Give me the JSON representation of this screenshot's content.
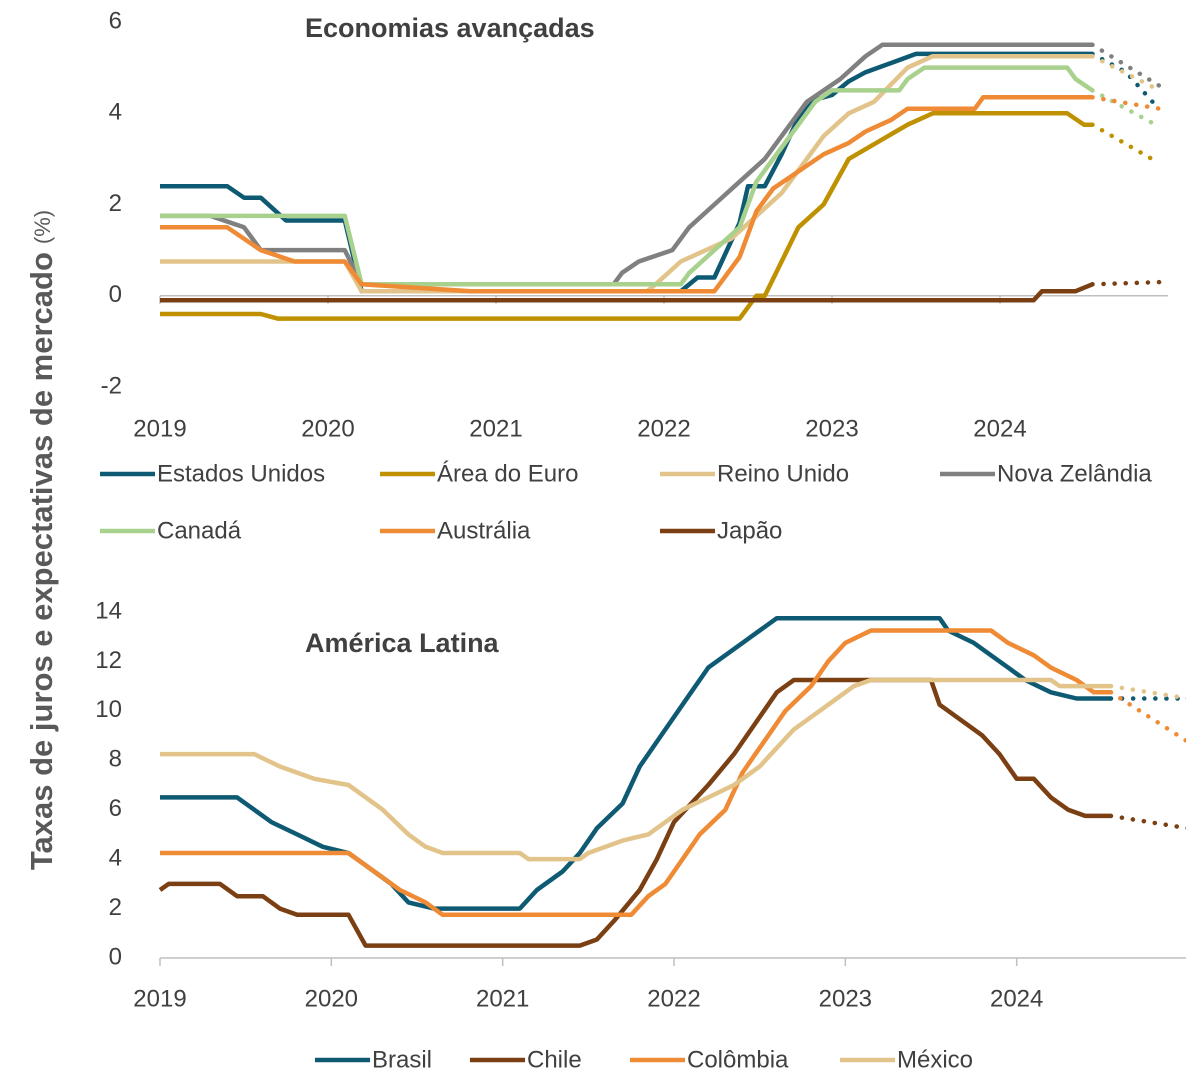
{
  "y_label": "Taxas de juros e expectativas de mercado",
  "y_unit": "(%)",
  "chart_data": [
    {
      "type": "line",
      "title": "Economias avançadas",
      "xlim": [
        2019,
        2025
      ],
      "ylim": [
        -2,
        6
      ],
      "xticks": [
        2019,
        2020,
        2021,
        2022,
        2023,
        2024
      ],
      "yticks": [
        -2,
        0,
        2,
        4,
        6
      ],
      "series": [
        {
          "name": "Estados Unidos",
          "color": "#0e5a73",
          "x": [
            2019,
            2019.4,
            2019.5,
            2019.6,
            2019.75,
            2020.1,
            2020.2,
            2022.1,
            2022.2,
            2022.3,
            2022.45,
            2022.5,
            2022.6,
            2022.7,
            2022.8,
            2022.9,
            2023.0,
            2023.1,
            2023.2,
            2023.35,
            2023.5,
            2024.55
          ],
          "values": [
            2.4,
            2.4,
            2.15,
            2.15,
            1.65,
            1.65,
            0.1,
            0.1,
            0.4,
            0.4,
            1.6,
            2.4,
            2.4,
            3.1,
            3.9,
            4.3,
            4.4,
            4.7,
            4.9,
            5.1,
            5.3,
            5.3
          ],
          "forecast": {
            "x": [
              2024.55,
              2024.75,
              2024.92
            ],
            "values": [
              5.3,
              4.9,
              4.2
            ]
          }
        },
        {
          "name": "Área do Euro",
          "color": "#bf9000",
          "x": [
            2019,
            2019.6,
            2019.7,
            2022.45,
            2022.55,
            2022.6,
            2022.8,
            2022.95,
            2023.1,
            2023.45,
            2023.6,
            2024.4,
            2024.5,
            2024.55
          ],
          "values": [
            -0.4,
            -0.4,
            -0.5,
            -0.5,
            0,
            0,
            1.5,
            2,
            3,
            3.75,
            4,
            4,
            3.75,
            3.75
          ],
          "forecast": {
            "x": [
              2024.55,
              2024.95
            ],
            "values": [
              3.75,
              2.9
            ]
          }
        },
        {
          "name": "Reino Unido",
          "color": "#e2c48a",
          "x": [
            2019,
            2020.1,
            2020.2,
            2021.9,
            2021.95,
            2022.1,
            2022.4,
            2022.55,
            2022.7,
            2022.85,
            2022.95,
            2023.1,
            2023.25,
            2023.45,
            2023.6,
            2024.55
          ],
          "values": [
            0.75,
            0.75,
            0.1,
            0.1,
            0.25,
            0.75,
            1.25,
            1.75,
            2.25,
            3,
            3.5,
            4,
            4.25,
            5,
            5.25,
            5.25
          ],
          "forecast": {
            "x": [
              2024.55,
              2024.95
            ],
            "values": [
              5.25,
              4.5
            ]
          }
        },
        {
          "name": "Nova Zelândia",
          "color": "#808080",
          "x": [
            2019,
            2019.3,
            2019.5,
            2019.6,
            2020.1,
            2020.2,
            2021.7,
            2021.75,
            2021.85,
            2022.05,
            2022.15,
            2022.3,
            2022.45,
            2022.6,
            2022.7,
            2022.85,
            2023.05,
            2023.2,
            2023.3,
            2024.55
          ],
          "values": [
            1.75,
            1.75,
            1.5,
            1,
            1,
            0.25,
            0.25,
            0.5,
            0.75,
            1,
            1.5,
            2,
            2.5,
            3,
            3.5,
            4.25,
            4.75,
            5.25,
            5.5,
            5.5
          ],
          "forecast": {
            "x": [
              2024.55,
              2024.95
            ],
            "values": [
              5.5,
              4.6
            ]
          }
        },
        {
          "name": "Canadá",
          "color": "#a9d18e",
          "x": [
            2019,
            2020.1,
            2020.2,
            2022.1,
            2022.15,
            2022.3,
            2022.45,
            2022.55,
            2022.7,
            2022.8,
            2022.9,
            2023.0,
            2023.4,
            2023.45,
            2023.55,
            2024.4,
            2024.45,
            2024.55
          ],
          "values": [
            1.75,
            1.75,
            0.25,
            0.25,
            0.5,
            1,
            1.5,
            2.5,
            3.25,
            3.75,
            4.25,
            4.5,
            4.5,
            4.75,
            5,
            5,
            4.75,
            4.5
          ],
          "forecast": {
            "x": [
              2024.55,
              2024.95
            ],
            "values": [
              4.5,
              3.7
            ]
          }
        },
        {
          "name": "Austrália",
          "color": "#ef8a35",
          "x": [
            2019,
            2019.4,
            2019.6,
            2019.8,
            2020.1,
            2020.2,
            2020.85,
            2022.3,
            2022.35,
            2022.45,
            2022.5,
            2022.55,
            2022.65,
            2022.75,
            2022.85,
            2022.95,
            2023.1,
            2023.2,
            2023.35,
            2023.45,
            2023.85,
            2023.9,
            2024.55
          ],
          "values": [
            1.5,
            1.5,
            1,
            0.75,
            0.75,
            0.25,
            0.1,
            0.1,
            0.35,
            0.85,
            1.35,
            1.85,
            2.35,
            2.6,
            2.85,
            3.1,
            3.35,
            3.6,
            3.85,
            4.1,
            4.1,
            4.35,
            4.35
          ],
          "forecast": {
            "x": [
              2024.55,
              2024.95
            ],
            "values": [
              4.35,
              4.1
            ]
          }
        },
        {
          "name": "Japão",
          "color": "#7b3f14",
          "x": [
            2019,
            2024.2,
            2024.25,
            2024.45,
            2024.55
          ],
          "values": [
            -0.1,
            -0.1,
            0.1,
            0.1,
            0.25
          ],
          "forecast": {
            "x": [
              2024.55,
              2024.95
            ],
            "values": [
              0.25,
              0.3
            ]
          }
        }
      ]
    },
    {
      "type": "line",
      "title": "América Latina",
      "xlim": [
        2019,
        2025
      ],
      "ylim": [
        0,
        14
      ],
      "xticks": [
        2019,
        2020,
        2021,
        2022,
        2023,
        2024
      ],
      "yticks": [
        0,
        2,
        4,
        6,
        8,
        10,
        12,
        14
      ],
      "series": [
        {
          "name": "Brasil",
          "color": "#0e5a73",
          "x": [
            2019,
            2019.45,
            2019.55,
            2019.65,
            2019.8,
            2019.95,
            2020.1,
            2020.2,
            2020.35,
            2020.45,
            2020.6,
            2021.1,
            2021.2,
            2021.35,
            2021.45,
            2021.55,
            2021.7,
            2021.8,
            2021.95,
            2022.1,
            2022.2,
            2022.4,
            2022.5,
            2022.6,
            2023.55,
            2023.6,
            2023.75,
            2023.85,
            2023.95,
            2024.05,
            2024.2,
            2024.35,
            2024.55
          ],
          "values": [
            6.5,
            6.5,
            6,
            5.5,
            5,
            4.5,
            4.25,
            3.75,
            3,
            2.25,
            2,
            2,
            2.75,
            3.5,
            4.25,
            5.25,
            6.25,
            7.75,
            9.25,
            10.75,
            11.75,
            12.75,
            13.25,
            13.75,
            13.75,
            13.25,
            12.75,
            12.25,
            11.75,
            11.25,
            10.75,
            10.5,
            10.5
          ],
          "forecast": {
            "x": [
              2024.55,
              2025
            ],
            "values": [
              10.5,
              10.5
            ]
          }
        },
        {
          "name": "Chile",
          "color": "#7b3f14",
          "x": [
            2019,
            2019.05,
            2019.35,
            2019.45,
            2019.6,
            2019.7,
            2019.8,
            2020.1,
            2020.2,
            2021.45,
            2021.55,
            2021.65,
            2021.8,
            2021.9,
            2022.0,
            2022.2,
            2022.35,
            2022.5,
            2022.6,
            2022.7,
            2023.5,
            2023.55,
            2023.7,
            2023.8,
            2023.9,
            2024.0,
            2024.1,
            2024.2,
            2024.3,
            2024.4,
            2024.55
          ],
          "values": [
            2.75,
            3,
            3,
            2.5,
            2.5,
            2,
            1.75,
            1.75,
            0.5,
            0.5,
            0.75,
            1.5,
            2.75,
            4,
            5.5,
            7,
            8.25,
            9.75,
            10.75,
            11.25,
            11.25,
            10.25,
            9.5,
            9,
            8.25,
            7.25,
            7.25,
            6.5,
            6,
            5.75,
            5.75
          ],
          "forecast": {
            "x": [
              2024.55,
              2025
            ],
            "values": [
              5.75,
              5.25
            ]
          }
        },
        {
          "name": "Colômbia",
          "color": "#ef8a35",
          "x": [
            2019,
            2020.1,
            2020.2,
            2020.4,
            2020.55,
            2020.65,
            2021.75,
            2021.85,
            2021.95,
            2022.05,
            2022.15,
            2022.3,
            2022.4,
            2022.55,
            2022.65,
            2022.8,
            2022.9,
            2023.0,
            2023.15,
            2023.85,
            2023.95,
            2024.1,
            2024.2,
            2024.35,
            2024.45,
            2024.55
          ],
          "values": [
            4.25,
            4.25,
            3.75,
            2.75,
            2.25,
            1.75,
            1.75,
            2.5,
            3,
            4,
            5,
            6,
            7.5,
            9,
            10,
            11,
            12,
            12.75,
            13.25,
            13.25,
            12.75,
            12.25,
            11.75,
            11.25,
            10.75,
            10.75
          ],
          "forecast": {
            "x": [
              2024.55,
              2025
            ],
            "values": [
              10.75,
              8.75
            ]
          }
        },
        {
          "name": "México",
          "color": "#e2c48a",
          "x": [
            2019,
            2019.55,
            2019.7,
            2019.9,
            2020.1,
            2020.3,
            2020.45,
            2020.55,
            2020.65,
            2021.1,
            2021.15,
            2021.45,
            2021.5,
            2021.7,
            2021.85,
            2021.95,
            2022.05,
            2022.2,
            2022.35,
            2022.5,
            2022.6,
            2022.7,
            2022.85,
            2022.95,
            2023.05,
            2023.15,
            2024.2,
            2024.25,
            2024.55
          ],
          "values": [
            8.25,
            8.25,
            7.75,
            7.25,
            7,
            6,
            5,
            4.5,
            4.25,
            4.25,
            4,
            4,
            4.25,
            4.75,
            5,
            5.5,
            6,
            6.5,
            7,
            7.75,
            8.5,
            9.25,
            10,
            10.5,
            11,
            11.25,
            11.25,
            11,
            11
          ],
          "forecast": {
            "x": [
              2024.55,
              2025
            ],
            "values": [
              11,
              10.5
            ]
          }
        }
      ]
    }
  ]
}
